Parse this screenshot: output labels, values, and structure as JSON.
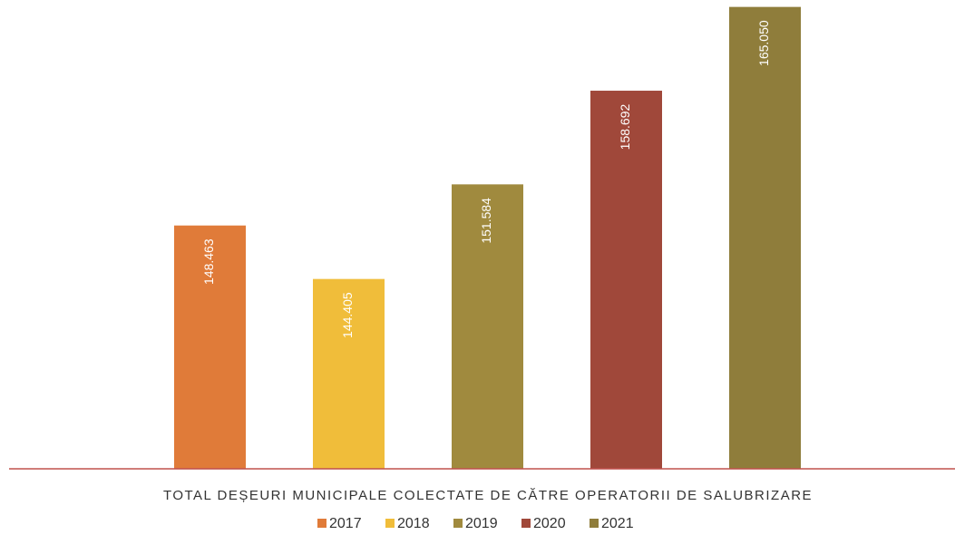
{
  "chart_data": {
    "type": "bar",
    "categories": [
      "TOTAL DEȘEURI MUNICIPALE COLECTATE DE CĂTRE OPERATORII DE SALUBRIZARE"
    ],
    "series": [
      {
        "name": "2017",
        "color": "#e07b39",
        "values": [
          148463
        ],
        "value_labels": [
          "148.463"
        ]
      },
      {
        "name": "2018",
        "color": "#f0bd3a",
        "values": [
          144405
        ],
        "value_labels": [
          "144.405"
        ]
      },
      {
        "name": "2019",
        "color": "#a08a3e",
        "values": [
          151584
        ],
        "value_labels": [
          "151.584"
        ]
      },
      {
        "name": "2020",
        "color": "#a0483a",
        "values": [
          158692
        ],
        "value_labels": [
          "158.692"
        ]
      },
      {
        "name": "2021",
        "color": "#8f7d3b",
        "values": [
          165050
        ],
        "value_labels": [
          "165.050"
        ]
      }
    ],
    "ylim": [
      130000,
      165300
    ],
    "legend": "bottom"
  }
}
